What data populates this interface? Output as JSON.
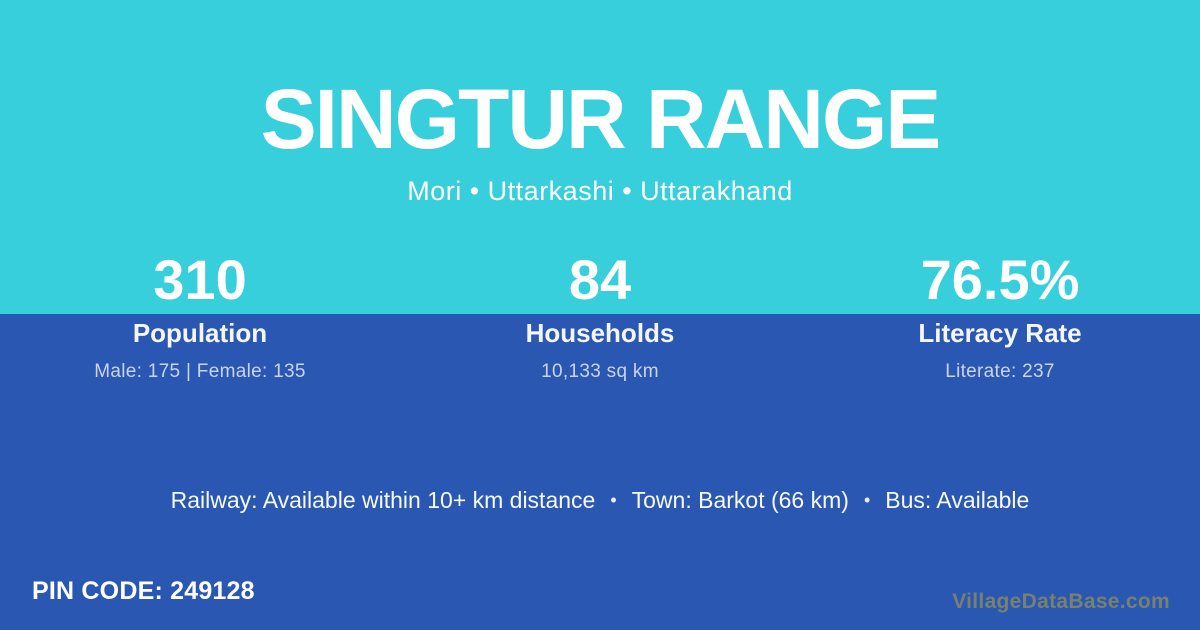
{
  "colors": {
    "top_background": "#38cfdc",
    "bottom_background": "#2a57b2",
    "primary_text": "#ffffff",
    "detail_text": "#c9d4ec",
    "watermark_text": "#76816f"
  },
  "header": {
    "title": "SINGTUR RANGE",
    "subtitle": "Mori • Uttarkashi • Uttarakhand"
  },
  "stats": [
    {
      "value": "310",
      "label": "Population",
      "detail": "Male: 175 | Female: 135"
    },
    {
      "value": "84",
      "label": "Households",
      "detail": "10,133 sq km"
    },
    {
      "value": "76.5%",
      "label": "Literacy Rate",
      "detail": "Literate: 237"
    }
  ],
  "facilities": {
    "separator": "•",
    "items": [
      "Railway: Available within 10+ km distance",
      "Town: Barkot (66 km)",
      "Bus: Available"
    ]
  },
  "footer": {
    "pin_code": "PIN CODE: 249128",
    "watermark": "VillageDataBase.com"
  }
}
